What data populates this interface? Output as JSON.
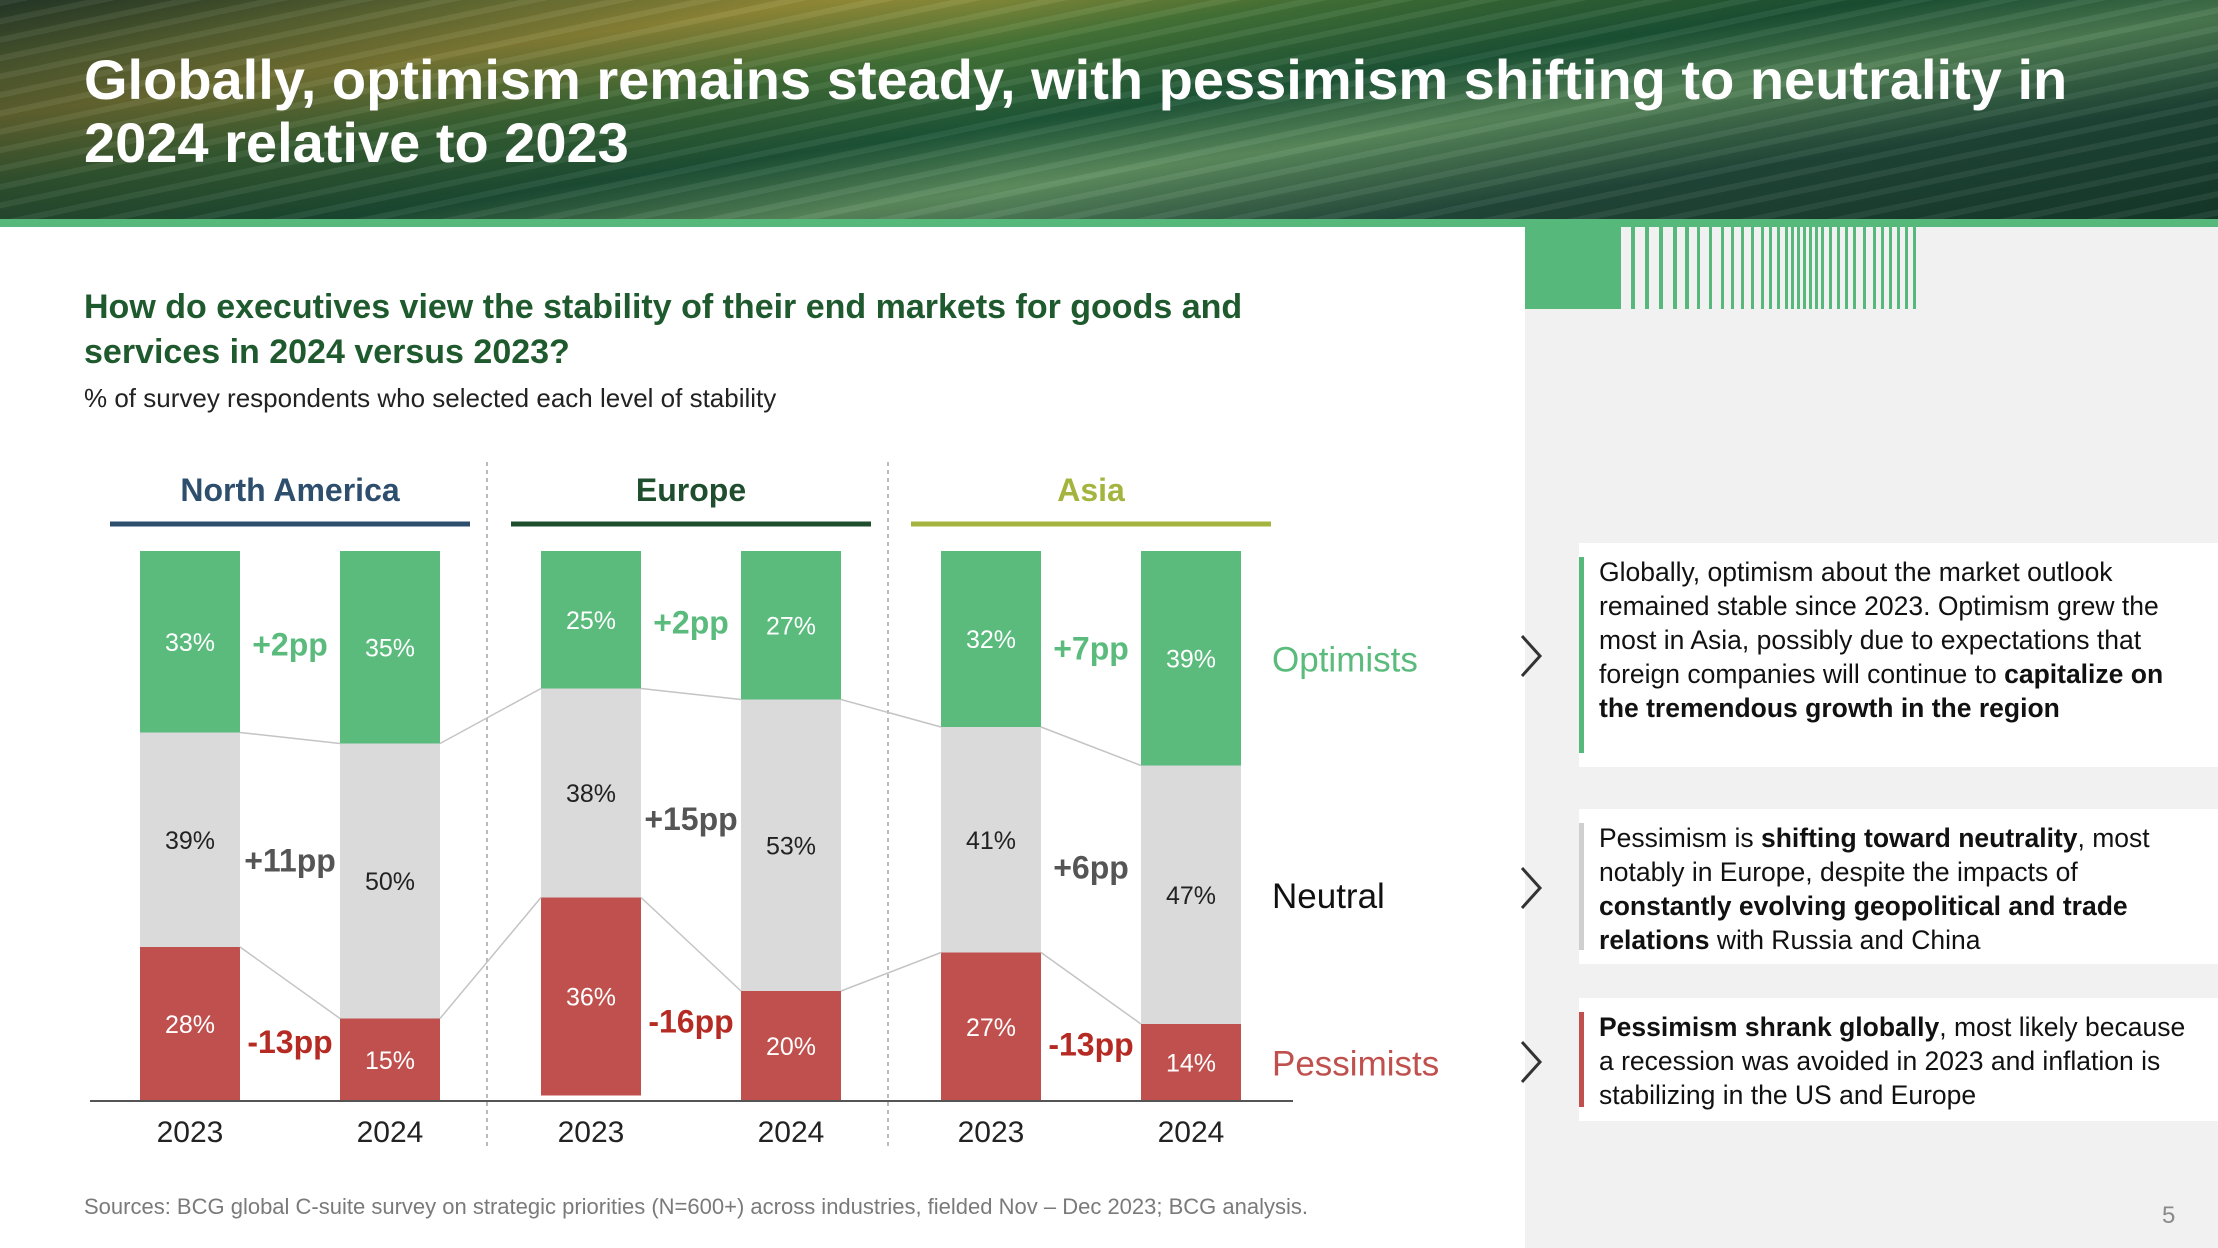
{
  "slide": {
    "title": "Globally, optimism remains steady, with pessimism shifting to neutrality in 2024 relative to 2023",
    "question": "How do executives view the stability of their end markets for goods and services in 2024 versus 2023?",
    "subtitle": "% of survey respondents who selected each level of stability",
    "source": "Sources: BCG global C-suite survey on strategic priorities (N=600+) across industries, fielded Nov – Dec 2023; BCG analysis.",
    "page_number": "5"
  },
  "colors": {
    "optimists": "#5abb7d",
    "neutral": "#dadada",
    "pessimists": "#c0504d",
    "north_america": "#2e4e6e",
    "europe": "#1f4e2e",
    "asia": "#a4b43e",
    "delta_optimists": "#5abb7d",
    "delta_neutral": "#555555",
    "delta_pessimists": "#b52b24"
  },
  "chart_data": {
    "type": "bar",
    "stacked": true,
    "ylim": [
      0,
      100
    ],
    "unit": "%",
    "categories": [
      "2023",
      "2024",
      "2023",
      "2024",
      "2023",
      "2024"
    ],
    "groups": [
      {
        "name": "North America",
        "years": [
          "2023",
          "2024"
        ],
        "optimists": [
          33,
          35
        ],
        "neutral": [
          39,
          50
        ],
        "pessimists": [
          28,
          15
        ],
        "labels": {
          "optimists": [
            "33%",
            "35%"
          ],
          "neutral": [
            "39%",
            "50%"
          ],
          "pessimists": [
            "28%",
            "15%"
          ]
        },
        "deltas": {
          "optimists": "+2pp",
          "neutral": "+11pp",
          "pessimists": "-13pp"
        }
      },
      {
        "name": "Europe",
        "years": [
          "2023",
          "2024"
        ],
        "optimists": [
          25,
          27
        ],
        "neutral": [
          38,
          53
        ],
        "pessimists": [
          36,
          20
        ],
        "labels": {
          "optimists": [
            "25%",
            "27%"
          ],
          "neutral": [
            "38%",
            "53%"
          ],
          "pessimists": [
            "36%",
            "20%"
          ]
        },
        "deltas": {
          "optimists": "+2pp",
          "neutral": "+15pp",
          "pessimists": "-16pp"
        }
      },
      {
        "name": "Asia",
        "years": [
          "2023",
          "2024"
        ],
        "optimists": [
          32,
          39
        ],
        "neutral": [
          41,
          47
        ],
        "pessimists": [
          27,
          14
        ],
        "labels": {
          "optimists": [
            "32%",
            "39%"
          ],
          "neutral": [
            "41%",
            "47%"
          ],
          "pessimists": [
            "27%",
            "14%"
          ]
        },
        "deltas": {
          "optimists": "+7pp",
          "neutral": "+6pp",
          "pessimists": "-13pp"
        }
      }
    ],
    "series": [
      {
        "name": "Optimists",
        "key": "optimists"
      },
      {
        "name": "Neutral",
        "key": "neutral"
      },
      {
        "name": "Pessimists",
        "key": "pessimists"
      }
    ],
    "legend": "right",
    "grid": false
  },
  "callouts": [
    {
      "accent": "#56b87a",
      "segments": [
        {
          "text": "Globally, optimism about the market outlook remained stable since 2023. Optimism grew the most in Asia, possibly due to expectations that foreign companies will continue to ",
          "bold": false
        },
        {
          "text": "capitalize on the tremendous growth in the region",
          "bold": true
        }
      ]
    },
    {
      "accent": "#cfcfcf",
      "segments": [
        {
          "text": "Pessimism is ",
          "bold": false
        },
        {
          "text": "shifting toward neutrality",
          "bold": true
        },
        {
          "text": ", most notably in Europe, despite the impacts of ",
          "bold": false
        },
        {
          "text": "constantly evolving geopolitical and trade relations",
          "bold": true
        },
        {
          "text": " with Russia and China",
          "bold": false
        }
      ]
    },
    {
      "accent": "#c0504d",
      "segments": [
        {
          "text": "Pessimism shrank globally",
          "bold": true
        },
        {
          "text": ", most likely because a recession was avoided in 2023 and inflation is stabilizing in the US and Europe",
          "bold": false
        }
      ]
    }
  ]
}
